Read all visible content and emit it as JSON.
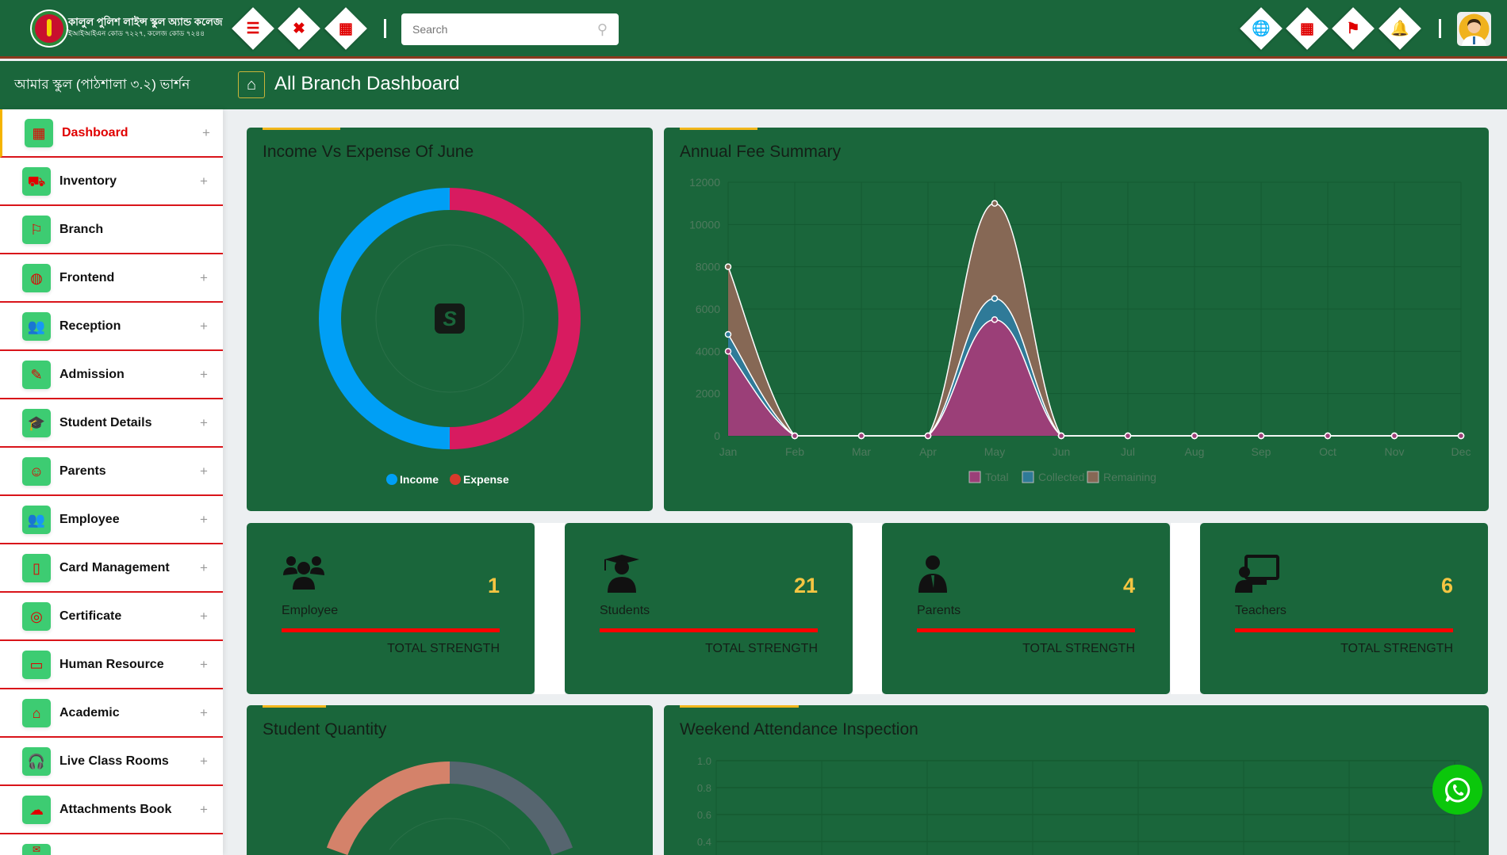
{
  "header": {
    "school_name": "কালুল পুলিশ লাইন্স স্কুল অ্যান্ড কলেজ",
    "school_subtitle": "ইআইআইএন কোড ৭২২৭, কলেজ কোড ৭২৪৪",
    "left_buttons": [
      {
        "icon": "menu-icon",
        "glyph": "☰"
      },
      {
        "icon": "fullscreen-icon",
        "glyph": "✖"
      },
      {
        "icon": "grid-icon",
        "glyph": "▦"
      }
    ],
    "search": {
      "placeholder": "Search",
      "value": ""
    },
    "right_buttons": [
      {
        "icon": "globe-icon",
        "glyph": "🌐"
      },
      {
        "icon": "calendar-icon",
        "glyph": "▦"
      },
      {
        "icon": "flag-icon",
        "glyph": "⚑"
      },
      {
        "icon": "bell-icon",
        "glyph": "🔔"
      }
    ],
    "version": "আমার স্কুল (পাঠশালা ৩.২) ভার্শন",
    "page_title": "All Branch Dashboard"
  },
  "sidebar": {
    "items": [
      {
        "label": "Dashboard",
        "icon": "dashboard-icon",
        "glyph": "▦",
        "active": true,
        "plus": "+"
      },
      {
        "label": "Inventory",
        "icon": "cart-icon",
        "glyph": "⛟",
        "plus": "+"
      },
      {
        "label": "Branch",
        "icon": "signpost-icon",
        "glyph": "⚐",
        "plus": ""
      },
      {
        "label": "Frontend",
        "icon": "globe-icon",
        "glyph": "◍",
        "plus": "+"
      },
      {
        "label": "Reception",
        "icon": "group-icon",
        "glyph": "👥",
        "plus": "+"
      },
      {
        "label": "Admission",
        "icon": "edit-icon",
        "glyph": "✎",
        "plus": "+"
      },
      {
        "label": "Student Details",
        "icon": "graduation-cap-icon",
        "glyph": "🎓",
        "plus": "+"
      },
      {
        "label": "Parents",
        "icon": "user-plus-icon",
        "glyph": "☺",
        "plus": "+"
      },
      {
        "label": "Employee",
        "icon": "users-icon",
        "glyph": "👥",
        "plus": "+"
      },
      {
        "label": "Card Management",
        "icon": "clipboard-icon",
        "glyph": "▯",
        "plus": "+"
      },
      {
        "label": "Certificate",
        "icon": "certificate-icon",
        "glyph": "◎",
        "plus": "+"
      },
      {
        "label": "Human Resource",
        "icon": "screen-icon",
        "glyph": "▭",
        "plus": "+"
      },
      {
        "label": "Academic",
        "icon": "home-icon",
        "glyph": "⌂",
        "plus": "+"
      },
      {
        "label": "Live Class Rooms",
        "icon": "headset-icon",
        "glyph": "🎧",
        "plus": "+"
      },
      {
        "label": "Attachments Book",
        "icon": "cloud-upload-icon",
        "glyph": "☁",
        "plus": "+"
      },
      {
        "label": "",
        "icon": "more-icon",
        "glyph": "✉",
        "plus": ""
      }
    ]
  },
  "income_card": {
    "title": "Income Vs Expense Of June"
  },
  "fee_card": {
    "title": "Annual Fee Summary"
  },
  "stats": [
    {
      "label": "Employee",
      "value": "1",
      "caption": "TOTAL STRENGTH",
      "icon": "users-icon"
    },
    {
      "label": "Students",
      "value": "21",
      "caption": "TOTAL STRENGTH",
      "icon": "student-icon"
    },
    {
      "label": "Parents",
      "value": "4",
      "caption": "TOTAL STRENGTH",
      "icon": "parent-icon"
    },
    {
      "label": "Teachers",
      "value": "6",
      "caption": "TOTAL STRENGTH",
      "icon": "teacher-icon"
    }
  ],
  "student_card": {
    "title": "Student Quantity"
  },
  "attendance_card": {
    "title": "Weekend Attendance Inspection"
  },
  "colors": {
    "primary": "#1a663b",
    "accent": "#f2b71c",
    "danger": "#e00000",
    "sidebar_icon_bg": "#3dcc72"
  },
  "chart_data": [
    {
      "type": "pie",
      "title": "Income Vs Expense Of June",
      "categories": [
        "Income",
        "Expense"
      ],
      "values": [
        50,
        50
      ],
      "colors": [
        "#009ff5",
        "#d81b60"
      ],
      "legend": "bottom"
    },
    {
      "type": "area",
      "title": "Annual Fee Summary",
      "stacked": true,
      "categories": [
        "Jan",
        "Feb",
        "Mar",
        "Apr",
        "May",
        "Jun",
        "Jul",
        "Aug",
        "Sep",
        "Oct",
        "Nov",
        "Dec"
      ],
      "series": [
        {
          "name": "Total",
          "color": "#9b3f78",
          "values": [
            4000,
            0,
            0,
            0,
            5500,
            0,
            0,
            0,
            0,
            0,
            0,
            0
          ]
        },
        {
          "name": "Collected",
          "color": "#2f7a98",
          "values": [
            800,
            0,
            0,
            0,
            1000,
            0,
            0,
            0,
            0,
            0,
            0,
            0
          ]
        },
        {
          "name": "Remaining",
          "color": "#866855",
          "values": [
            3200,
            0,
            0,
            0,
            4500,
            0,
            0,
            0,
            0,
            0,
            0,
            0
          ]
        }
      ],
      "yticks": [
        "0",
        "2000",
        "4000",
        "6000",
        "8000",
        "10000",
        "12000"
      ],
      "ylim": [
        0,
        12000
      ],
      "grid": true,
      "legend": "bottom"
    },
    {
      "type": "pie",
      "title": "Student Quantity",
      "values": [
        50,
        42,
        8
      ],
      "colors": [
        "#d4826a",
        "#56656f",
        "#c9ccd0"
      ]
    },
    {
      "type": "line",
      "title": "Weekend Attendance Inspection",
      "yticks": [
        "0.4",
        "0.6",
        "0.8",
        "1.0"
      ],
      "ylim": [
        0,
        1.0
      ],
      "grid": true
    }
  ]
}
